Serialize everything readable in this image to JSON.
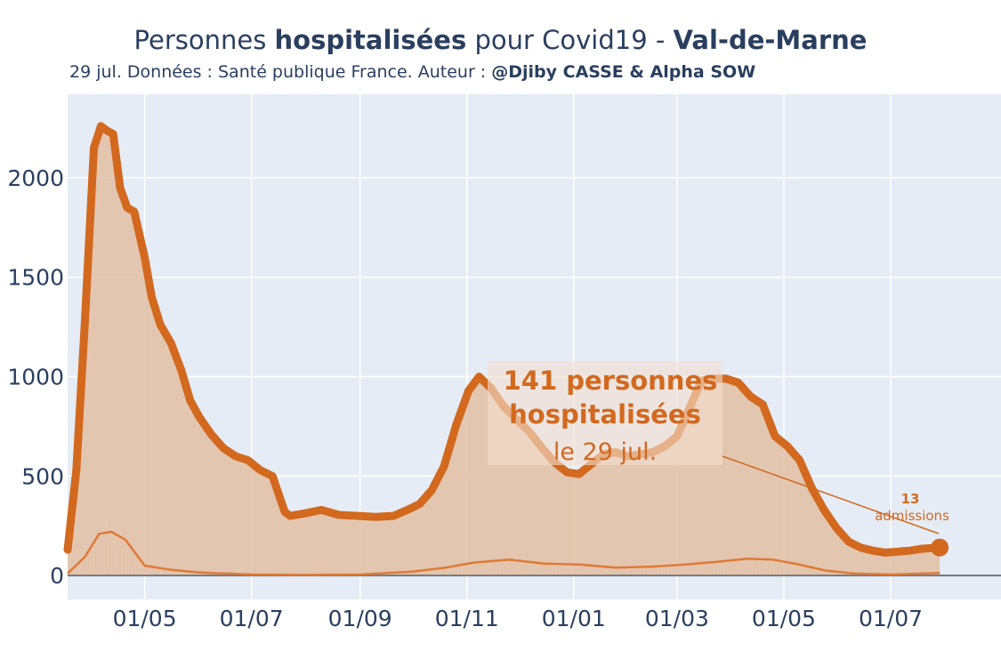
{
  "header": {
    "title_prefix": "Personnes ",
    "title_bold1": "hospitalisées",
    "title_mid": " pour Covid19 - ",
    "title_bold2": "Val-de-Marne",
    "subtitle_prefix": "29 jul. Données : Santé publique France. Auteur : ",
    "subtitle_bold": "@Djiby CASSE & Alpha SOW"
  },
  "annotations": {
    "main_line1": "141 personnes",
    "main_line2": "hospitalisées",
    "main_date": "le 29 jul.",
    "admissions_count": "13",
    "admissions_label": "admissions"
  },
  "colors": {
    "plot_bg": "#e5ecf6",
    "grid": "#ffffff",
    "line": "#d2691e",
    "fill": "#e2c2a8",
    "secondary": "#e07a35",
    "zero_line": "#777777",
    "annotation_bg": "#f3dfd1"
  },
  "chart_data": {
    "type": "area",
    "title": "Personnes hospitalisées pour Covid19 - Val-de-Marne",
    "xlabel": "",
    "ylabel": "",
    "x_tick_labels": [
      "01/05",
      "01/07",
      "01/09",
      "01/11",
      "01/01",
      "01/03",
      "01/05",
      "01/07"
    ],
    "x_tick_dates": [
      "2020-05-01",
      "2020-07-01",
      "2020-09-01",
      "2020-11-01",
      "2021-01-01",
      "2021-03-01",
      "2021-05-01",
      "2021-07-01"
    ],
    "y_ticks": [
      0,
      500,
      1000,
      1500,
      2000
    ],
    "xlim": [
      "2020-03-18",
      "2021-09-02"
    ],
    "ylim": [
      -120,
      2420
    ],
    "grid": true,
    "legend": "none",
    "series": [
      {
        "name": "hospitalisations",
        "x": [
          "2020-03-18",
          "2020-03-23",
          "2020-03-28",
          "2020-04-02",
          "2020-04-06",
          "2020-04-09",
          "2020-04-13",
          "2020-04-17",
          "2020-04-21",
          "2020-04-25",
          "2020-05-01",
          "2020-05-05",
          "2020-05-10",
          "2020-05-16",
          "2020-05-22",
          "2020-05-27",
          "2020-06-01",
          "2020-06-08",
          "2020-06-15",
          "2020-06-22",
          "2020-06-29",
          "2020-07-06",
          "2020-07-13",
          "2020-07-20",
          "2020-07-23",
          "2020-07-30",
          "2020-08-10",
          "2020-08-20",
          "2020-08-31",
          "2020-09-10",
          "2020-09-20",
          "2020-09-28",
          "2020-10-05",
          "2020-10-12",
          "2020-10-19",
          "2020-10-26",
          "2020-11-02",
          "2020-11-08",
          "2020-11-15",
          "2020-11-22",
          "2020-11-30",
          "2020-12-07",
          "2020-12-14",
          "2020-12-21",
          "2020-12-28",
          "2021-01-04",
          "2021-01-11",
          "2021-01-18",
          "2021-01-25",
          "2021-02-01",
          "2021-02-08",
          "2021-02-15",
          "2021-02-22",
          "2021-03-01",
          "2021-03-08",
          "2021-03-15",
          "2021-03-22",
          "2021-03-29",
          "2021-04-05",
          "2021-04-12",
          "2021-04-19",
          "2021-04-26",
          "2021-05-03",
          "2021-05-10",
          "2021-05-17",
          "2021-05-24",
          "2021-05-31",
          "2021-06-07",
          "2021-06-14",
          "2021-06-21",
          "2021-06-28",
          "2021-07-05",
          "2021-07-12",
          "2021-07-19",
          "2021-07-29"
        ],
        "values": [
          130,
          530,
          1300,
          2150,
          2260,
          2240,
          2220,
          1950,
          1850,
          1830,
          1600,
          1400,
          1260,
          1170,
          1030,
          880,
          800,
          710,
          640,
          600,
          580,
          530,
          500,
          320,
          300,
          310,
          330,
          305,
          300,
          295,
          300,
          330,
          360,
          430,
          550,
          760,
          930,
          1000,
          940,
          850,
          780,
          720,
          640,
          570,
          520,
          510,
          560,
          610,
          620,
          600,
          610,
          620,
          650,
          700,
          840,
          980,
          990,
          990,
          970,
          900,
          860,
          700,
          650,
          580,
          440,
          330,
          240,
          170,
          140,
          125,
          115,
          120,
          125,
          135,
          141
        ]
      },
      {
        "name": "admissions",
        "x": [
          "2020-03-18",
          "2020-03-28",
          "2020-04-05",
          "2020-04-12",
          "2020-04-20",
          "2020-05-01",
          "2020-05-15",
          "2020-06-01",
          "2020-07-01",
          "2020-08-01",
          "2020-09-01",
          "2020-10-01",
          "2020-10-20",
          "2020-11-05",
          "2020-11-25",
          "2020-12-15",
          "2021-01-05",
          "2021-01-25",
          "2021-02-15",
          "2021-03-05",
          "2021-03-25",
          "2021-04-10",
          "2021-04-25",
          "2021-05-10",
          "2021-05-25",
          "2021-06-10",
          "2021-07-01",
          "2021-07-29"
        ],
        "values": [
          10,
          95,
          210,
          220,
          180,
          50,
          30,
          15,
          5,
          3,
          5,
          20,
          40,
          65,
          80,
          60,
          55,
          40,
          45,
          55,
          70,
          85,
          80,
          55,
          25,
          10,
          5,
          13
        ]
      }
    ]
  }
}
